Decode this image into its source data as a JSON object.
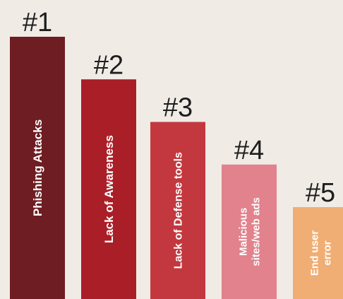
{
  "chart_data": {
    "type": "bar",
    "categories": [
      "Phishing Attacks",
      "Lack of Awareness",
      "Lack of Defense tools",
      "Malicious sites/web ads",
      "End user error"
    ],
    "rank_labels": [
      "#1",
      "#2",
      "#3",
      "#4",
      "#5"
    ],
    "bar_label_lines": [
      [
        "Phishing Attacks"
      ],
      [
        "Lack of Awareness"
      ],
      [
        "Lack of Defense tools"
      ],
      [
        "Malicious",
        "sites/web ads"
      ],
      [
        "End user",
        "error"
      ]
    ],
    "values": [
      5,
      4,
      3,
      2,
      1
    ],
    "colors": [
      "#6e1d22",
      "#aa1f27",
      "#c3383e",
      "#e1828c",
      "#f0ae74"
    ],
    "title": "",
    "xlabel": "",
    "ylabel": "",
    "grid": false,
    "legend": "none"
  }
}
